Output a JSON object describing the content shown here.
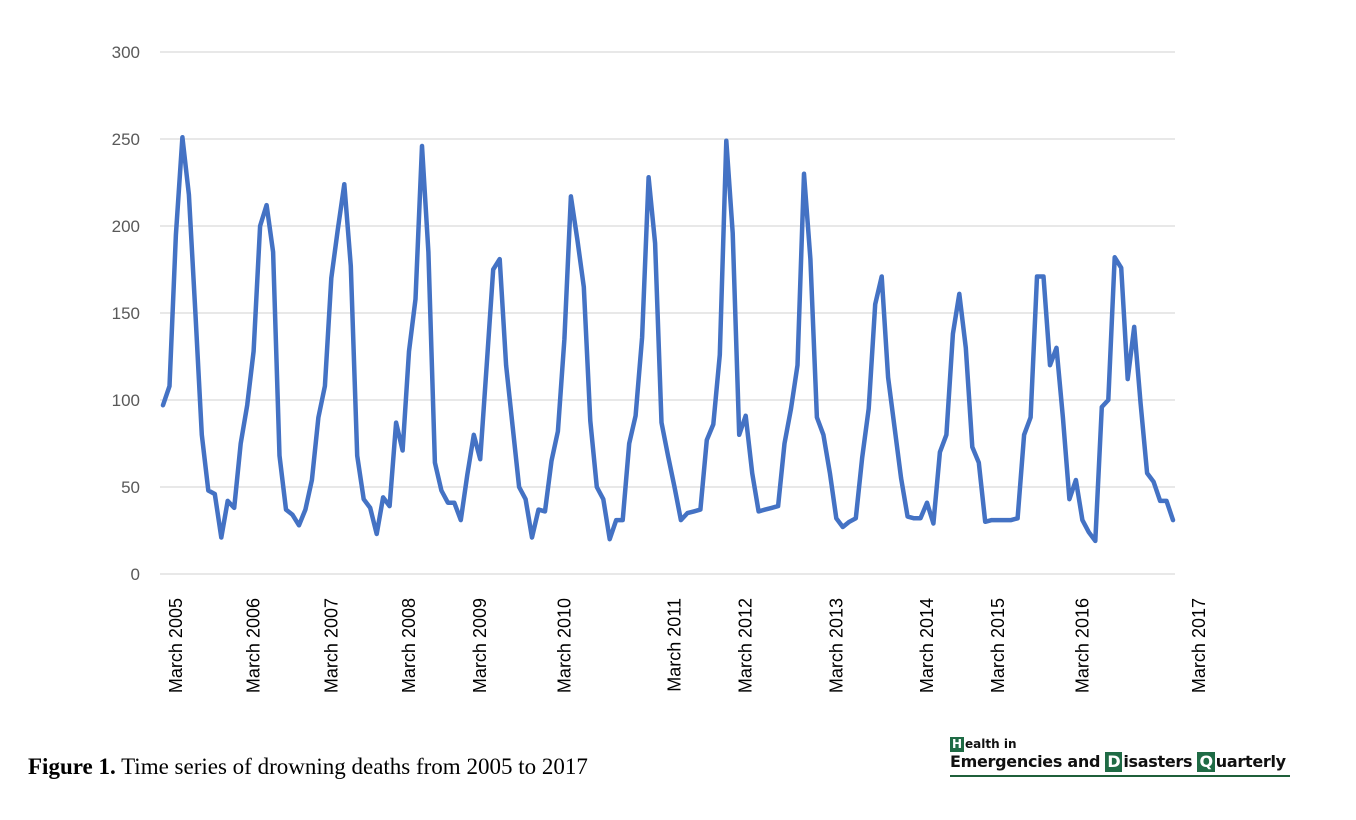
{
  "chart_data": {
    "type": "line",
    "title": "",
    "xlabel": "",
    "ylabel": "",
    "ylim": [
      0,
      300
    ],
    "yticks": [
      0,
      50,
      100,
      150,
      200,
      250,
      300
    ],
    "grid": true,
    "legend": "none",
    "line_color": "#4472c4",
    "x_tick_labels": [
      {
        "label": "March 2005",
        "index": 2
      },
      {
        "label": "March 2006",
        "index": 14
      },
      {
        "label": "March 2007",
        "index": 26
      },
      {
        "label": "March 2008",
        "index": 38
      },
      {
        "label": "March 2009",
        "index": 49
      },
      {
        "label": "March 2010",
        "index": 62
      },
      {
        "label": "March 2011",
        "index": 79
      },
      {
        "label": "March 2012",
        "index": 90
      },
      {
        "label": "March 2013",
        "index": 104
      },
      {
        "label": "March 2014",
        "index": 118
      },
      {
        "label": "March 2015",
        "index": 129
      },
      {
        "label": "March 2016",
        "index": 142
      },
      {
        "label": "March 2017",
        "index": 160
      }
    ],
    "series": [
      {
        "values": [
          97,
          108,
          195,
          251,
          218,
          150,
          80,
          48,
          46,
          21,
          42,
          38,
          75,
          97,
          128,
          200,
          212,
          185,
          68,
          37,
          34,
          28,
          37,
          54,
          90,
          108,
          170,
          198,
          224,
          177,
          68,
          43,
          38,
          23,
          44,
          39,
          87,
          71,
          128,
          158,
          246,
          185,
          64,
          48,
          41,
          41,
          31,
          57,
          80,
          66,
          120,
          175,
          181,
          120,
          85,
          50,
          43,
          21,
          37,
          36,
          65,
          82,
          135,
          217,
          192,
          165,
          88,
          50,
          43,
          20,
          31,
          31,
          75,
          91,
          136,
          228,
          190,
          87,
          68,
          50,
          31,
          35,
          36,
          37,
          77,
          86,
          126,
          249,
          196,
          80,
          91,
          58,
          36,
          37,
          38,
          39,
          75,
          95,
          120,
          230,
          181,
          90,
          80,
          58,
          32,
          27,
          30,
          32,
          67,
          95,
          155,
          171,
          113,
          84,
          55,
          33,
          32,
          32,
          41,
          29,
          70,
          80,
          138,
          161,
          130,
          73,
          64,
          30,
          31,
          31,
          31,
          31,
          32,
          80,
          90,
          171,
          171,
          120,
          130,
          90,
          43,
          54,
          31,
          24,
          19,
          96,
          100,
          182,
          176,
          112,
          142,
          98,
          58,
          53,
          42,
          42,
          31
        ]
      }
    ]
  },
  "caption": {
    "label": "Figure 1.",
    "text": " Time series of drowning deaths from 2005 to 2017"
  },
  "logo": {
    "line1_cap": "H",
    "line1_rest": "ealth in",
    "emergencies": "Emergencies and ",
    "d_cap": "D",
    "disasters": "isasters ",
    "q_cap": "Q",
    "quarterly": "uarterly"
  }
}
